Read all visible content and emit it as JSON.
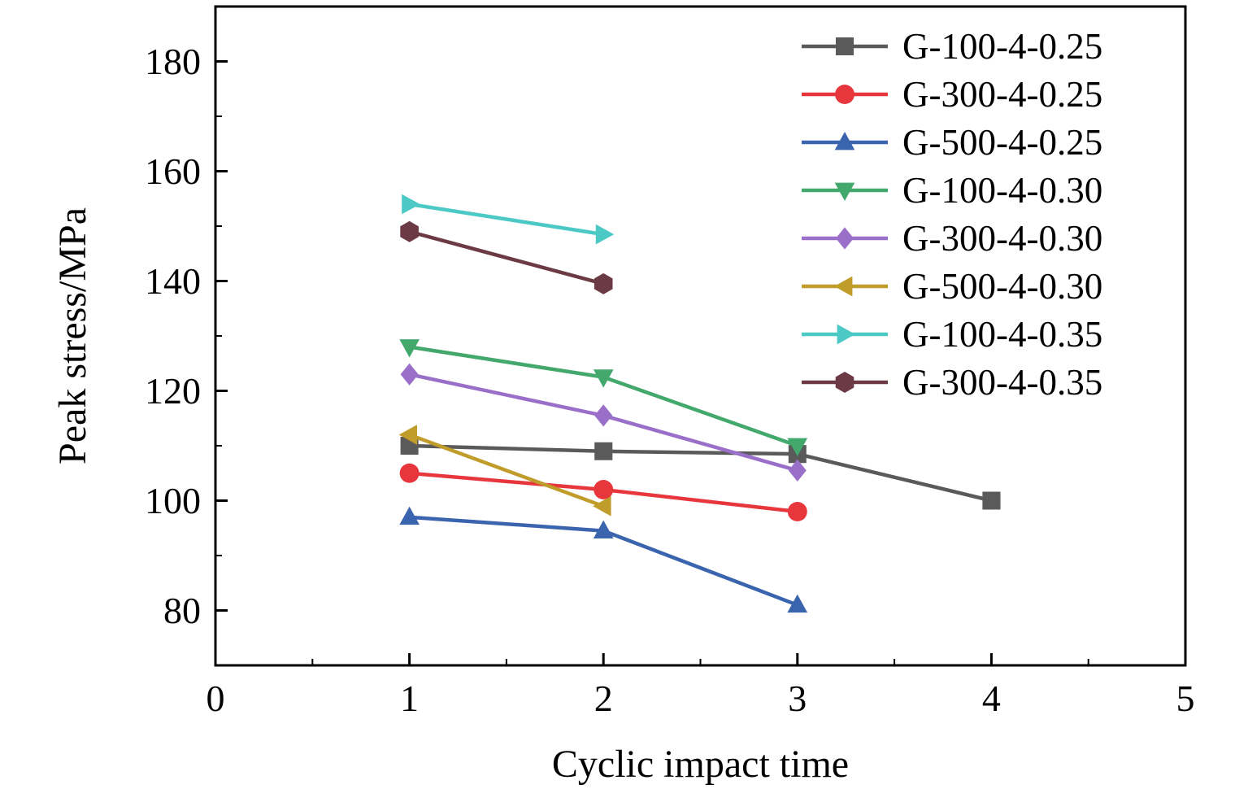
{
  "figure": {
    "background_color": "#ffffff",
    "axis_color": "#000000"
  },
  "chart_data": {
    "type": "line",
    "title": "",
    "xlabel": "Cyclic impact time",
    "ylabel": "Peak stress/MPa",
    "xlim": [
      0,
      5
    ],
    "ylim": [
      70,
      190
    ],
    "x_tick_values": [
      0,
      1,
      2,
      3,
      4,
      5
    ],
    "y_tick_values": [
      80,
      100,
      120,
      140,
      160,
      180
    ],
    "x_minor_step": 0.5,
    "y_minor_step": 10,
    "grid": false,
    "legend_position": "top-right",
    "series": [
      {
        "name": "G-100-4-0.25",
        "color": "#5A5A5A",
        "marker": "square",
        "x": [
          1,
          2,
          3,
          4
        ],
        "y": [
          110,
          109,
          108.5,
          100
        ]
      },
      {
        "name": "G-300-4-0.25",
        "color": "#E8363D",
        "marker": "circle",
        "x": [
          1,
          2,
          3
        ],
        "y": [
          105,
          102,
          98
        ]
      },
      {
        "name": "G-500-4-0.25",
        "color": "#3A64AE",
        "marker": "triangle-up",
        "x": [
          1,
          2,
          3
        ],
        "y": [
          97,
          94.5,
          81
        ]
      },
      {
        "name": "G-100-4-0.30",
        "color": "#43A86C",
        "marker": "triangle-down",
        "x": [
          1,
          2,
          3
        ],
        "y": [
          128,
          122.5,
          110
        ]
      },
      {
        "name": "G-300-4-0.30",
        "color": "#9A6FC9",
        "marker": "diamond",
        "x": [
          1,
          2,
          3
        ],
        "y": [
          123,
          115.5,
          105.5
        ]
      },
      {
        "name": "G-500-4-0.30",
        "color": "#C09C2B",
        "marker": "triangle-left",
        "x": [
          1,
          2
        ],
        "y": [
          112,
          99
        ]
      },
      {
        "name": "G-100-4-0.35",
        "color": "#4CC9C5",
        "marker": "triangle-right",
        "x": [
          1,
          2
        ],
        "y": [
          154,
          148.5
        ]
      },
      {
        "name": "G-300-4-0.35",
        "color": "#6B3A44",
        "marker": "hexagon",
        "x": [
          1,
          2
        ],
        "y": [
          149,
          139.5
        ]
      }
    ]
  }
}
